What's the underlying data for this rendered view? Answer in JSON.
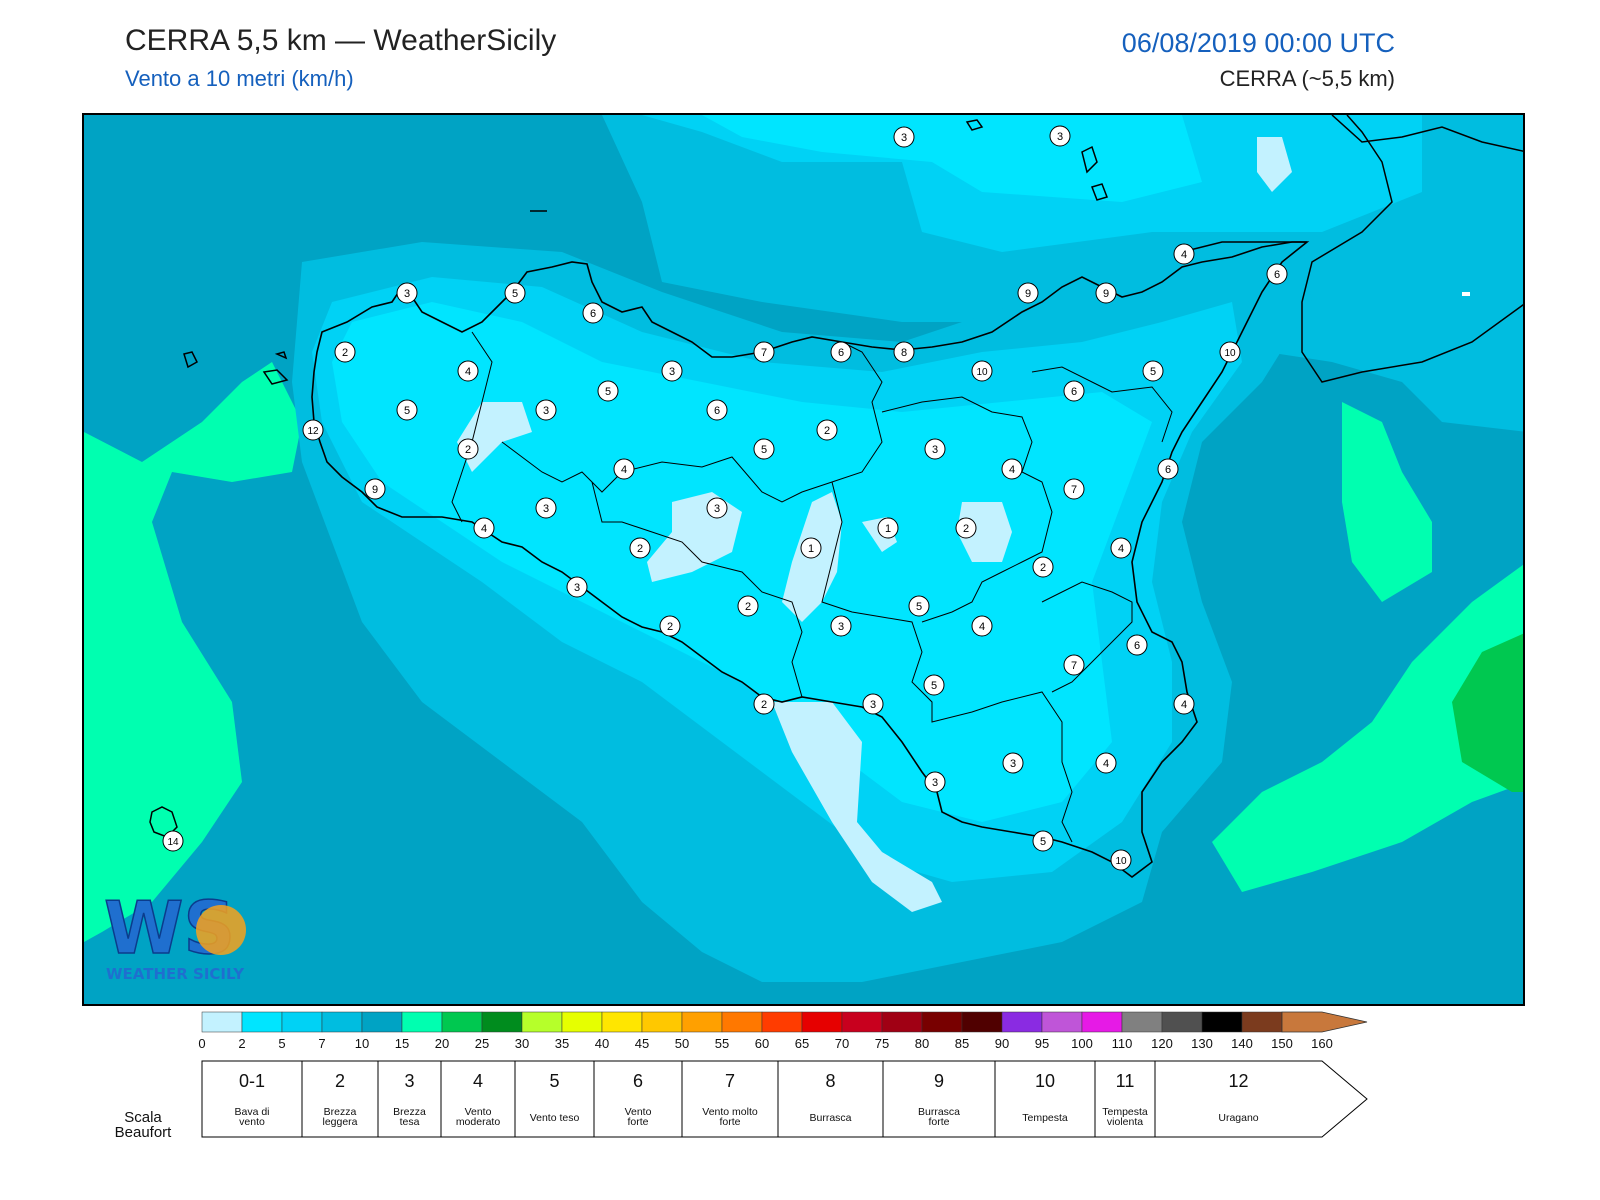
{
  "header": {
    "title": "CERRA 5,5 km — WeatherSicily",
    "subtitle": "Vento a 10 metri (km/h)",
    "datetime": "06/08/2019 00:00 UTC",
    "model": "CERRA (~5,5 km)"
  },
  "logo": {
    "text": "WEATHER SICILY",
    "letters": "WS"
  },
  "colors": {
    "sea_background": "#00a3c4",
    "land_light": "#00e5ff",
    "calm_patch": "#c3f2ff",
    "green_patch": "#00ffb0",
    "dark_green": "#00c850"
  },
  "wind_labels": [
    {
      "v": "3"
    },
    {
      "v": "3"
    },
    {
      "v": "4"
    },
    {
      "v": "6"
    },
    {
      "v": "3"
    },
    {
      "v": "5"
    },
    {
      "v": "6"
    },
    {
      "v": "9"
    },
    {
      "v": "9"
    },
    {
      "v": "2"
    },
    {
      "v": "7"
    },
    {
      "v": "6"
    },
    {
      "v": "8"
    },
    {
      "v": "10"
    },
    {
      "v": "10"
    },
    {
      "v": "4"
    },
    {
      "v": "3"
    },
    {
      "v": "5"
    },
    {
      "v": "5"
    },
    {
      "v": "6"
    },
    {
      "v": "5"
    },
    {
      "v": "3"
    },
    {
      "v": "6"
    },
    {
      "v": "12"
    },
    {
      "v": "2"
    },
    {
      "v": "2"
    },
    {
      "v": "5"
    },
    {
      "v": "3"
    },
    {
      "v": "4"
    },
    {
      "v": "4"
    },
    {
      "v": "7"
    },
    {
      "v": "6"
    },
    {
      "v": "9"
    },
    {
      "v": "3"
    },
    {
      "v": "3"
    },
    {
      "v": "1"
    },
    {
      "v": "2"
    },
    {
      "v": "4"
    },
    {
      "v": "4"
    },
    {
      "v": "2"
    },
    {
      "v": "1"
    },
    {
      "v": "2"
    },
    {
      "v": "3"
    },
    {
      "v": "2"
    },
    {
      "v": "5"
    },
    {
      "v": "2"
    },
    {
      "v": "3"
    },
    {
      "v": "4"
    },
    {
      "v": "6"
    },
    {
      "v": "7"
    },
    {
      "v": "5"
    },
    {
      "v": "4"
    },
    {
      "v": "2"
    },
    {
      "v": "3"
    },
    {
      "v": "3"
    },
    {
      "v": "3"
    },
    {
      "v": "4"
    },
    {
      "v": "14"
    },
    {
      "v": "5"
    },
    {
      "v": "10"
    }
  ],
  "colorbar": {
    "ticks": [
      "0",
      "2",
      "5",
      "7",
      "10",
      "15",
      "20",
      "25",
      "30",
      "35",
      "40",
      "45",
      "50",
      "55",
      "60",
      "65",
      "70",
      "75",
      "80",
      "85",
      "90",
      "95",
      "100",
      "110",
      "120",
      "130",
      "140",
      "150",
      "160"
    ],
    "colors": [
      "#c3f2ff",
      "#00e5ff",
      "#00d2f5",
      "#00bde0",
      "#00a3c4",
      "#00ffb0",
      "#00c850",
      "#008c1e",
      "#b6ff2a",
      "#e6ff00",
      "#ffe600",
      "#ffc800",
      "#ffa000",
      "#ff7800",
      "#ff3c00",
      "#e60000",
      "#c8001e",
      "#a00014",
      "#780000",
      "#500000",
      "#8a2be2",
      "#bf55d8",
      "#e61ae6",
      "#808080",
      "#505050",
      "#000000",
      "#7b3b1e",
      "#c8783c"
    ]
  },
  "beaufort": {
    "label": "Scala\nBeaufort",
    "cells": [
      {
        "num": "0-1",
        "name": "Bava di\nvento"
      },
      {
        "num": "2",
        "name": "Brezza\nleggera"
      },
      {
        "num": "3",
        "name": "Brezza\ntesa"
      },
      {
        "num": "4",
        "name": "Vento\nmoderato"
      },
      {
        "num": "5",
        "name": "Vento teso"
      },
      {
        "num": "6",
        "name": "Vento\nforte"
      },
      {
        "num": "7",
        "name": "Vento molto\nforte"
      },
      {
        "num": "8",
        "name": "Burrasca"
      },
      {
        "num": "9",
        "name": "Burrasca\nforte"
      },
      {
        "num": "10",
        "name": "Tempesta"
      },
      {
        "num": "11",
        "name": "Tempesta\nviolenta"
      },
      {
        "num": "12",
        "name": "Uragano"
      }
    ]
  }
}
